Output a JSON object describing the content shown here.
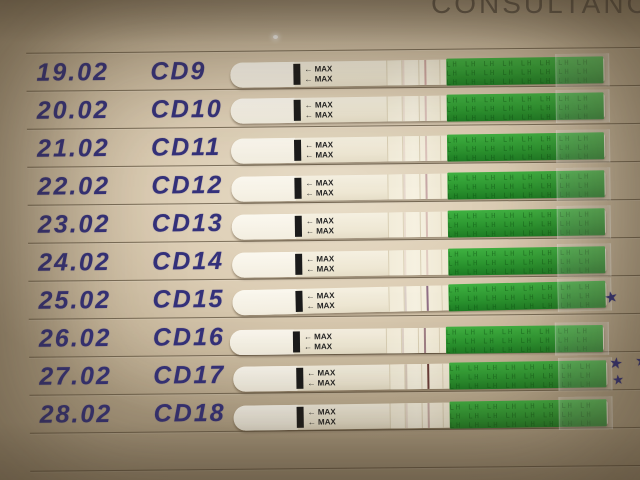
{
  "letterhead": "CONSULTANC",
  "glyphs": {
    "star": "★"
  },
  "strip": {
    "max_label_top": "← MAX",
    "max_label_bottom": "← MAX",
    "handle_pattern": "LH LH LH LH LH LH LH LH LH LH LH LH LH LH LH LH LH LH LH LH LH LH LH LH LH LH LH LH LH LH LH LH LH LH LH LH LH LH LH LH LH LH LH LH LH",
    "handle_color": "#2d9831",
    "body_color": "#eee7d3"
  },
  "ink_color": "#34317b",
  "rows": [
    {
      "date": "19.02",
      "cycle_day": "CD9",
      "test_line_color": "#bf8e8e",
      "test_line_opacity": 0.75,
      "stars": 0
    },
    {
      "date": "20.02",
      "cycle_day": "CD10",
      "test_line_color": "#c9a3a3",
      "test_line_opacity": 0.6,
      "stars": 0
    },
    {
      "date": "21.02",
      "cycle_day": "CD11",
      "test_line_color": "#c9a3a3",
      "test_line_opacity": 0.55,
      "stars": 0
    },
    {
      "date": "22.02",
      "cycle_day": "CD12",
      "test_line_color": "#b38a90",
      "test_line_opacity": 0.7,
      "stars": 0
    },
    {
      "date": "23.02",
      "cycle_day": "CD13",
      "test_line_color": "#c59f9d",
      "test_line_opacity": 0.6,
      "stars": 0
    },
    {
      "date": "24.02",
      "cycle_day": "CD14",
      "test_line_color": "#cdaaa8",
      "test_line_opacity": 0.5,
      "stars": 0
    },
    {
      "date": "25.02",
      "cycle_day": "CD15",
      "test_line_color": "#85607b",
      "test_line_opacity": 0.9,
      "stars": 1
    },
    {
      "date": "26.02",
      "cycle_day": "CD16",
      "test_line_color": "#916c77",
      "test_line_opacity": 0.85,
      "stars": 0
    },
    {
      "date": "27.02",
      "cycle_day": "CD17",
      "test_line_color": "#6a3d38",
      "test_line_opacity": 1.0,
      "stars": 3
    },
    {
      "date": "28.02",
      "cycle_day": "CD18",
      "test_line_color": "#ac8686",
      "test_line_opacity": 0.65,
      "stars": 0
    }
  ]
}
